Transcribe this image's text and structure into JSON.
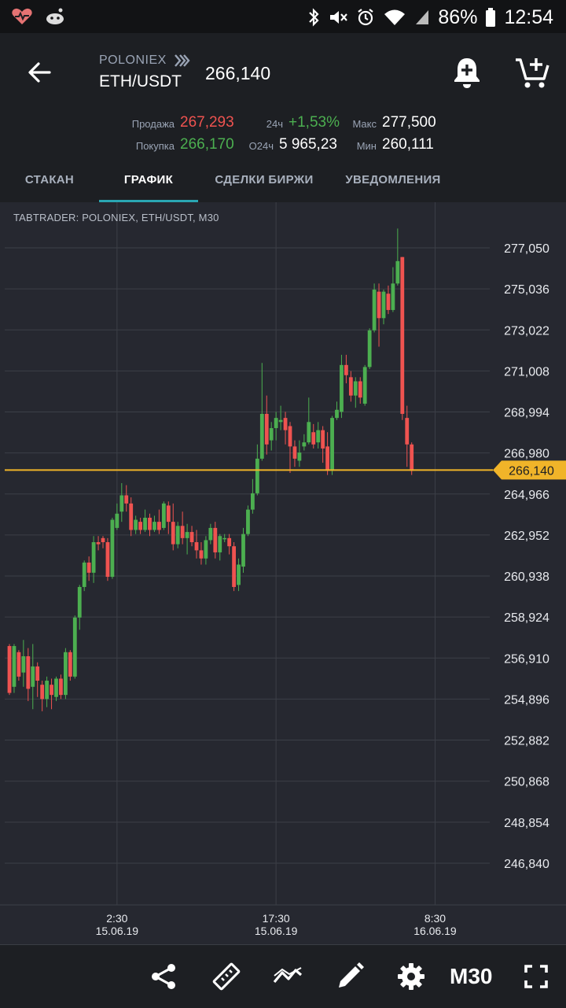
{
  "statusbar": {
    "battery": "86%",
    "time": "12:54"
  },
  "header": {
    "exchange": "POLONIEX",
    "pair": "ETH/USDT",
    "last_price": "266,140",
    "sell_label": "Продажа",
    "sell_value": "267,293",
    "buy_label": "Покупка",
    "buy_value": "266,170",
    "change_label": "24ч",
    "change_value": "+1,53%",
    "volume_label": "О24ч",
    "volume_value": "5 965,23",
    "max_label": "Макс",
    "max_value": "277,500",
    "min_label": "Мин",
    "min_value": "260,111"
  },
  "tabs": [
    "СТАКАН",
    "ГРАФИК",
    "СДЕЛКИ БИРЖИ",
    "УВЕДОМЛЕНИЯ"
  ],
  "active_tab": 1,
  "chart_title": "TABTRADER: POLONIEX, ETH/USDT, M30",
  "timeframe": "M30",
  "chart_data": {
    "type": "candlestick",
    "y_ticks": [
      "277,050",
      "275,036",
      "273,022",
      "271,008",
      "268,994",
      "266,980",
      "264,966",
      "262,952",
      "260,938",
      "258,924",
      "256,910",
      "254,896",
      "252,882",
      "250,868",
      "248,854",
      "246,840"
    ],
    "y_tick_values": [
      277.05,
      275.036,
      273.022,
      271.008,
      268.994,
      266.98,
      264.966,
      262.952,
      260.938,
      258.924,
      256.91,
      254.896,
      252.882,
      250.868,
      248.854,
      246.84
    ],
    "ylim": [
      245.0,
      279.8
    ],
    "x_ticks": [
      {
        "time": "2:30",
        "date": "15.06.19",
        "index": 23
      },
      {
        "time": "17:30",
        "date": "15.06.19",
        "index": 57
      },
      {
        "time": "8:30",
        "date": "16.06.19",
        "index": 91
      }
    ],
    "current_price": 266.14,
    "current_price_label": "266,140",
    "colors": {
      "up": "#4caf50",
      "down": "#ef5350",
      "price_line": "#f0b429"
    },
    "candles": [
      [
        257.5,
        255.2,
        257.6,
        255.1
      ],
      [
        255.5,
        257.5,
        257.6,
        255.2
      ],
      [
        257.2,
        256.0,
        257.3,
        255.8
      ],
      [
        256.2,
        257.0,
        257.8,
        255.5
      ],
      [
        257.0,
        255.4,
        257.4,
        254.8
      ],
      [
        255.5,
        256.5,
        257.6,
        254.4
      ],
      [
        256.5,
        255.8,
        256.7,
        255.0
      ],
      [
        255.6,
        254.9,
        255.8,
        254.3
      ],
      [
        254.9,
        255.8,
        256.0,
        254.5
      ],
      [
        255.6,
        255.1,
        255.9,
        254.4
      ],
      [
        255.0,
        255.9,
        256.0,
        254.8
      ],
      [
        255.9,
        255.1,
        256.1,
        254.9
      ],
      [
        255.1,
        257.2,
        257.4,
        254.9
      ],
      [
        257.2,
        256.0,
        257.3,
        255.8
      ],
      [
        256.0,
        258.9,
        259.0,
        255.9
      ],
      [
        258.9,
        260.4,
        260.5,
        258.3
      ],
      [
        260.4,
        261.6,
        261.7,
        260.2
      ],
      [
        261.6,
        261.1,
        261.9,
        260.7
      ],
      [
        261.1,
        262.6,
        262.9,
        260.6
      ],
      [
        262.6,
        262.5,
        262.9,
        262.2
      ],
      [
        262.8,
        262.6,
        262.9,
        262.3
      ],
      [
        262.6,
        260.9,
        262.8,
        260.7
      ],
      [
        260.9,
        263.7,
        263.8,
        260.8
      ],
      [
        263.3,
        264.0,
        264.5,
        263.2
      ],
      [
        264.1,
        264.9,
        265.5,
        263.6
      ],
      [
        264.9,
        264.5,
        265.4,
        264.1
      ],
      [
        264.5,
        263.2,
        264.8,
        262.9
      ],
      [
        263.2,
        263.7,
        263.9,
        263.0
      ],
      [
        263.6,
        263.2,
        263.8,
        263.0
      ],
      [
        263.2,
        263.8,
        264.2,
        263.1
      ],
      [
        263.8,
        263.2,
        264.0,
        262.9
      ],
      [
        263.2,
        263.6,
        263.9,
        263.1
      ],
      [
        263.6,
        263.2,
        264.2,
        263.0
      ],
      [
        263.3,
        264.5,
        264.6,
        263.2
      ],
      [
        264.4,
        263.6,
        264.6,
        263.0
      ],
      [
        263.6,
        262.5,
        264.5,
        262.2
      ],
      [
        262.5,
        263.4,
        263.6,
        262.3
      ],
      [
        263.4,
        262.8,
        264.1,
        262.5
      ],
      [
        262.8,
        263.1,
        263.5,
        262.0
      ],
      [
        263.1,
        262.6,
        263.4,
        262.4
      ],
      [
        262.6,
        262.2,
        263.2,
        261.8
      ],
      [
        262.2,
        261.8,
        262.6,
        261.5
      ],
      [
        261.8,
        262.7,
        262.9,
        261.5
      ],
      [
        262.7,
        263.3,
        263.5,
        262.5
      ],
      [
        263.3,
        262.1,
        263.6,
        261.8
      ],
      [
        262.1,
        262.9,
        263.0,
        261.7
      ],
      [
        262.8,
        262.8,
        263.0,
        262.6
      ],
      [
        262.8,
        262.4,
        263.0,
        262.0
      ],
      [
        262.4,
        260.4,
        262.6,
        260.2
      ],
      [
        260.5,
        261.5,
        261.8,
        260.2
      ],
      [
        261.4,
        263.0,
        263.3,
        261.1
      ],
      [
        263.0,
        264.2,
        264.4,
        262.9
      ],
      [
        264.2,
        265.0,
        265.7,
        264.0
      ],
      [
        265.0,
        266.7,
        267.4,
        264.9
      ],
      [
        266.7,
        268.9,
        271.4,
        266.6
      ],
      [
        268.9,
        267.4,
        269.8,
        266.9
      ],
      [
        267.6,
        268.2,
        268.5,
        267.1
      ],
      [
        268.2,
        268.7,
        269.0,
        267.6
      ],
      [
        268.5,
        268.6,
        269.3,
        268.1
      ],
      [
        268.7,
        268.1,
        269.0,
        267.4
      ],
      [
        268.3,
        267.3,
        268.5,
        266.0
      ],
      [
        267.3,
        266.7,
        267.6,
        266.3
      ],
      [
        266.6,
        267.0,
        267.6,
        266.3
      ],
      [
        267.3,
        267.5,
        267.9,
        267.1
      ],
      [
        267.5,
        268.5,
        269.7,
        267.4
      ],
      [
        268.0,
        267.4,
        268.4,
        267.2
      ],
      [
        267.5,
        268.1,
        268.5,
        267.2
      ],
      [
        268.1,
        267.2,
        268.3,
        266.5
      ],
      [
        267.3,
        266.1,
        268.0,
        265.9
      ],
      [
        266.1,
        268.7,
        268.8,
        265.9
      ],
      [
        268.7,
        269.1,
        269.5,
        268.6
      ],
      [
        269.0,
        271.3,
        271.8,
        268.7
      ],
      [
        271.3,
        270.8,
        271.8,
        270.4
      ],
      [
        270.7,
        269.8,
        271.0,
        269.5
      ],
      [
        269.8,
        270.5,
        270.7,
        269.2
      ],
      [
        270.5,
        269.7,
        270.7,
        269.4
      ],
      [
        269.4,
        271.2,
        271.3,
        269.3
      ],
      [
        271.2,
        273.0,
        273.1,
        271.1
      ],
      [
        273.0,
        275.0,
        275.3,
        272.9
      ],
      [
        274.9,
        273.6,
        275.3,
        272.2
      ],
      [
        273.6,
        274.9,
        275.0,
        273.3
      ],
      [
        274.8,
        274.0,
        275.2,
        273.8
      ],
      [
        274.0,
        275.3,
        276.1,
        273.9
      ],
      [
        275.3,
        276.4,
        278.0,
        275.2
      ],
      [
        276.6,
        268.9,
        276.6,
        268.6
      ],
      [
        268.7,
        267.4,
        269.3,
        266.3
      ],
      [
        267.4,
        266.1,
        267.5,
        265.9
      ]
    ]
  }
}
